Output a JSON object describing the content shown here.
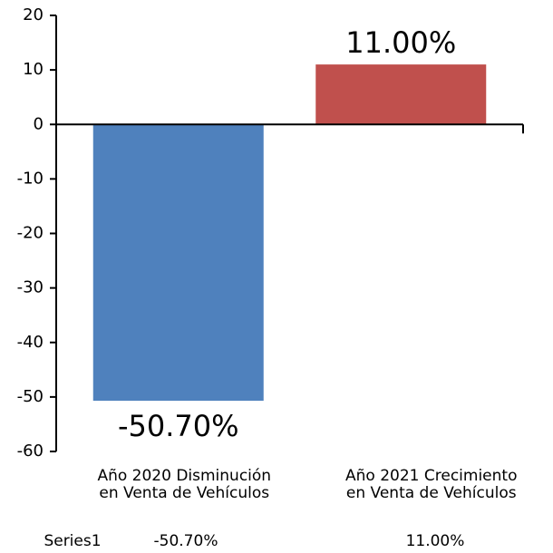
{
  "chart_data": {
    "type": "bar",
    "categories": [
      "Año 2020 Disminución\nen Venta de Vehículos",
      "Año 2021 Crecimiento\nen Venta de Vehículos"
    ],
    "series": [
      {
        "name": "Series1",
        "colors": [
          "#4f81bd",
          "#c0504d"
        ],
        "values": [
          -50.7,
          11
        ],
        "value_labels": [
          "-50.70%",
          "11.00%"
        ]
      }
    ],
    "ylim": [
      -60,
      20
    ],
    "yticks": [
      -60,
      -50,
      -40,
      -30,
      -20,
      -10,
      0,
      10,
      20
    ]
  }
}
